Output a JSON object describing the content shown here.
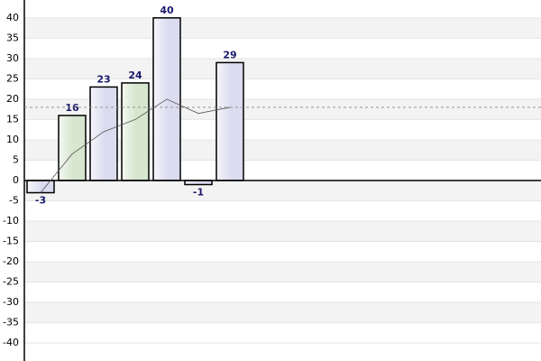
{
  "chart_data": {
    "type": "bar",
    "values": [
      -3,
      16,
      23,
      24,
      40,
      -1,
      29
    ],
    "colors": [
      "#dcdcf0",
      "#d6e6cf",
      "#dcdcf0",
      "#d6e6cf",
      "#dcdcf0",
      "#dcdcf0",
      "#dcdcf0"
    ],
    "line": {
      "color": "#555555",
      "values": [
        -3,
        6.5,
        12,
        15,
        20,
        16.5,
        18
      ]
    },
    "reference_line": {
      "value": 18,
      "color": "#888888"
    },
    "value_label_color": "#1a1a6e",
    "ylim": [
      -44.4,
      44.4
    ],
    "yticks": [
      -40,
      -35,
      -30,
      -25,
      -20,
      -15,
      -10,
      -5,
      0,
      5,
      10,
      15,
      20,
      25,
      30,
      35,
      40
    ],
    "grid": true
  }
}
